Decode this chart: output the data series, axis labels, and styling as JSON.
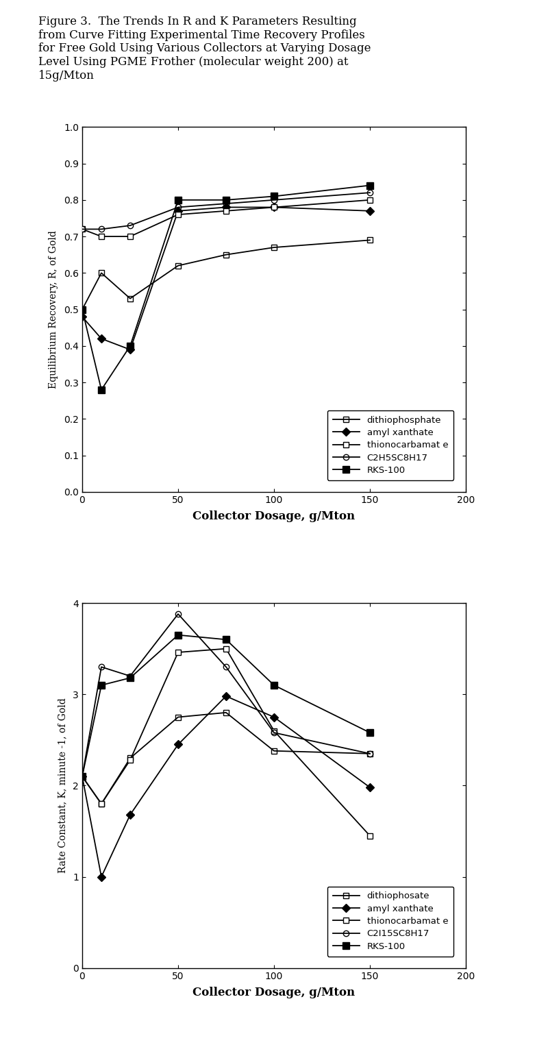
{
  "title_lines": [
    "Figure 3.  The Trends In R and K Parameters Resulting",
    "from Curve Fitting Experimental Time Recovery Profiles",
    "for Free Gold Using Various Collectors at Varying Dosage",
    "Level Using PGME Frother (molecular weight 200) at",
    "15g/Mton"
  ],
  "x_dosage": [
    0,
    10,
    25,
    50,
    75,
    100,
    150
  ],
  "R_series": {
    "dithiophosphate": [
      0.5,
      0.6,
      0.53,
      0.62,
      0.65,
      0.67,
      0.69
    ],
    "amyl_xanthate": [
      0.48,
      0.42,
      0.39,
      0.77,
      0.78,
      0.78,
      0.77
    ],
    "thionocarbamate": [
      0.72,
      0.7,
      0.7,
      0.76,
      0.77,
      0.78,
      0.8
    ],
    "C2H5SC8H17": [
      0.72,
      0.72,
      0.73,
      0.78,
      0.79,
      0.8,
      0.82
    ],
    "RKS100": [
      0.5,
      0.28,
      0.4,
      0.8,
      0.8,
      0.81,
      0.84
    ]
  },
  "K_series": {
    "dithiophosphate": [
      2.1,
      1.8,
      2.3,
      2.75,
      2.8,
      2.38,
      2.35
    ],
    "amyl_xanthate": [
      2.1,
      1.0,
      1.68,
      2.45,
      2.98,
      2.75,
      1.98
    ],
    "thionocarbamate": [
      2.1,
      1.8,
      2.28,
      3.46,
      3.5,
      2.6,
      1.45
    ],
    "C2H5SC8H17": [
      2.1,
      3.3,
      3.2,
      3.88,
      3.3,
      2.58,
      2.35
    ],
    "RKS100": [
      2.1,
      3.1,
      3.18,
      3.65,
      3.6,
      3.1,
      2.58
    ]
  },
  "legend_labels_R": [
    "dithiophosphate",
    "amyl xanthate",
    "thionocarbamat e",
    "C2H5SC8H17",
    "RKS-100"
  ],
  "legend_labels_K": [
    "dithiophosate",
    "amyl xanthate",
    "thionocarbamat e",
    "C2I15SC8H17",
    "RKS-100"
  ],
  "R_ylabel": "Equilibrium Recovery, R, of Gold",
  "K_ylabel": "Rate Constant, K, minute -1, of Gold",
  "xlabel": "Collector Dosage, g/Mton",
  "R_ylim": [
    0.0,
    1.0
  ],
  "K_ylim": [
    0,
    4
  ],
  "xlim": [
    0,
    200
  ],
  "xticks": [
    0,
    50,
    100,
    150,
    200
  ],
  "R_yticks": [
    0.0,
    0.1,
    0.2,
    0.3,
    0.4,
    0.5,
    0.6,
    0.7,
    0.8,
    0.9,
    1.0
  ],
  "K_yticks": [
    0,
    1,
    2,
    3,
    4
  ],
  "background": "#ffffff"
}
